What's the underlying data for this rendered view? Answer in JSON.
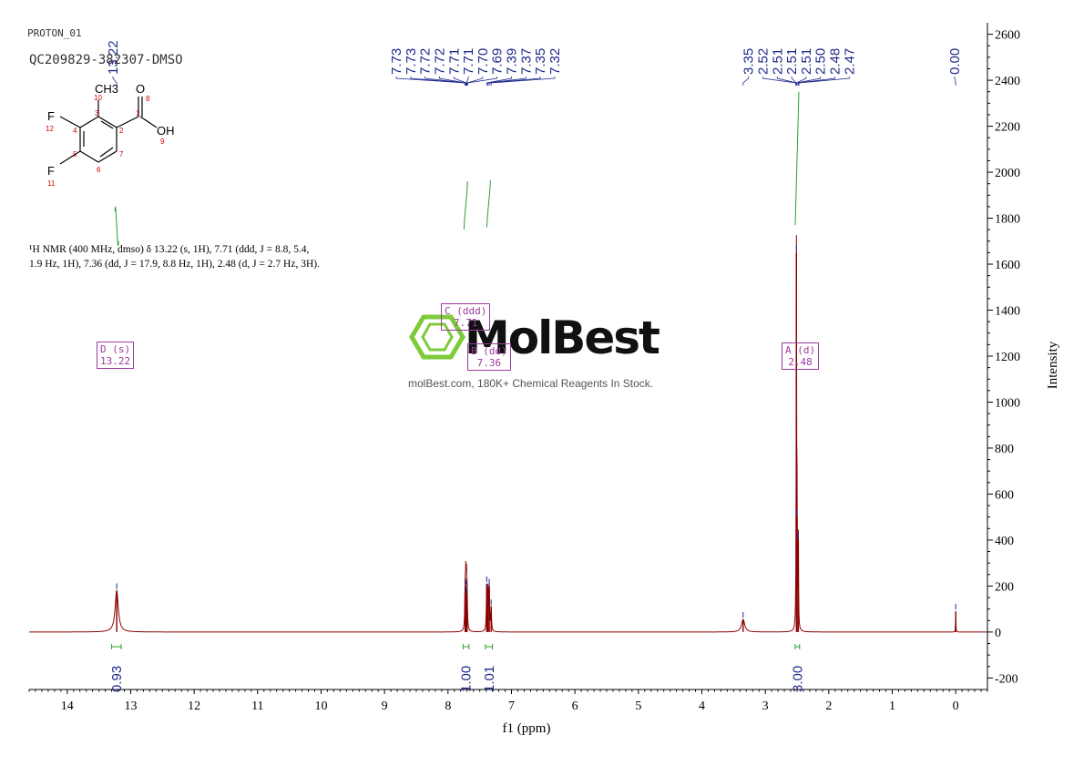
{
  "header": {
    "experiment": "PROTON_01",
    "sample": "QC209829-382307-DMSO"
  },
  "structure": {
    "atoms": {
      "ch3": "CH3",
      "o_carbonyl": "O",
      "oh": "OH",
      "f_top": "F",
      "f_bottom": "F"
    },
    "numbers": [
      "10",
      "3",
      "8",
      "1",
      "2",
      "4",
      "12",
      "9",
      "7",
      "5",
      "6",
      "11"
    ]
  },
  "description": {
    "line1": "¹H NMR (400 MHz, dmso) δ 13.22 (s, 1H), 7.71 (ddd, J = 8.8, 5.4,",
    "line2": "1.9 Hz, 1H), 7.36 (dd, J = 17.9, 8.8 Hz, 1H), 2.48 (d, J = 2.7 Hz, 3H)."
  },
  "watermark": {
    "logo": "MolBest",
    "tagline": "molBest.com, 180K+ Chemical Reagents In Stock."
  },
  "multiplets": [
    {
      "label": "D (s)",
      "value": "13.22"
    },
    {
      "label": "C (ddd)",
      "value": "7.71"
    },
    {
      "label": "B (dd)",
      "value": "7.36"
    },
    {
      "label": "A (d)",
      "value": "2.48"
    }
  ],
  "colors": {
    "spectrum": "#8b0000",
    "peak_labels": "#1f2a8c",
    "integral": "#2aa02a",
    "multiplet_box": "#9c3b9c",
    "atom_number": "#d00000"
  },
  "chart_data": {
    "type": "line",
    "xlabel": "f1 (ppm)",
    "ylabel": "Intensity",
    "xlim": [
      14.6,
      -0.5
    ],
    "ylim": [
      -250,
      2650
    ],
    "x_ticks": [
      14,
      13,
      12,
      11,
      10,
      9,
      8,
      7,
      6,
      5,
      4,
      3,
      2,
      1,
      0
    ],
    "y_ticks": [
      -200,
      0,
      200,
      400,
      600,
      800,
      1000,
      1200,
      1400,
      1600,
      1800,
      2000,
      2200,
      2400,
      2600
    ],
    "peak_labels_group1": [
      "7.73",
      "7.73",
      "7.72",
      "7.72",
      "7.71",
      "7.71",
      "7.70",
      "7.69",
      "7.39",
      "7.37",
      "7.35",
      "7.32"
    ],
    "peak_labels_group2": [
      "3.35",
      "2.52",
      "2.51",
      "2.51",
      "2.51",
      "2.50",
      "2.48",
      "2.47"
    ],
    "peak_labels_group3": [
      "13.22"
    ],
    "peak_labels_group4": [
      "0.00"
    ],
    "peaks": [
      {
        "ppm": 13.22,
        "height": 180,
        "width": 0.03
      },
      {
        "ppm": 7.73,
        "height": 170,
        "width": 0.006
      },
      {
        "ppm": 7.72,
        "height": 200,
        "width": 0.006
      },
      {
        "ppm": 7.71,
        "height": 190,
        "width": 0.006
      },
      {
        "ppm": 7.7,
        "height": 160,
        "width": 0.006
      },
      {
        "ppm": 7.39,
        "height": 210,
        "width": 0.006
      },
      {
        "ppm": 7.37,
        "height": 180,
        "width": 0.006
      },
      {
        "ppm": 7.35,
        "height": 200,
        "width": 0.006
      },
      {
        "ppm": 7.32,
        "height": 110,
        "width": 0.006
      },
      {
        "ppm": 3.35,
        "height": 55,
        "width": 0.03
      },
      {
        "ppm": 2.51,
        "height": 1650,
        "width": 0.004
      },
      {
        "ppm": 2.5,
        "height": 500,
        "width": 0.004
      },
      {
        "ppm": 2.48,
        "height": 400,
        "width": 0.004
      },
      {
        "ppm": 0.0,
        "height": 90,
        "width": 0.003
      }
    ],
    "integrals": [
      {
        "from": 13.3,
        "to": 13.15,
        "value": "0.93"
      },
      {
        "from": 7.76,
        "to": 7.67,
        "value": "1.00"
      },
      {
        "from": 7.41,
        "to": 7.3,
        "value": "1.01"
      },
      {
        "from": 2.53,
        "to": 2.46,
        "value": "3.00"
      }
    ]
  }
}
